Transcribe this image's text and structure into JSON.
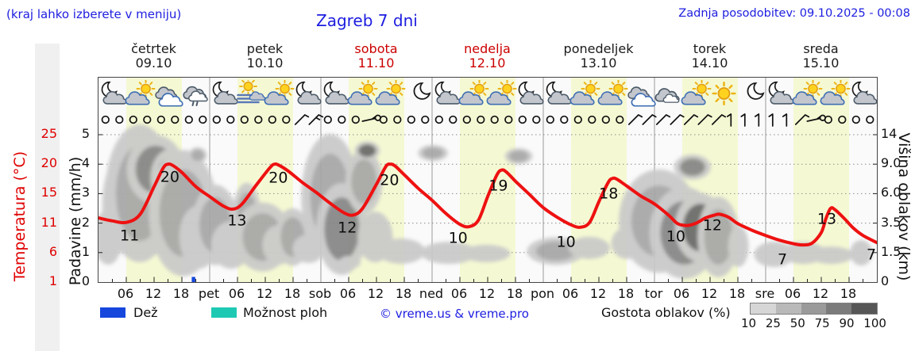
{
  "header": {
    "hint": "(kraj lahko izberete v meniju)",
    "title": "Zagreb 7 dni",
    "updated": "Zadnja posodobitev: 09.10.2025 - 00:08"
  },
  "days": [
    {
      "name": "četrtek",
      "date": "09.10",
      "highlight": false
    },
    {
      "name": "petek",
      "date": "10.10",
      "highlight": false
    },
    {
      "name": "sobota",
      "date": "11.10",
      "highlight": true
    },
    {
      "name": "nedelja",
      "date": "12.10",
      "highlight": true
    },
    {
      "name": "ponedeljek",
      "date": "13.10",
      "highlight": false
    },
    {
      "name": "torek",
      "date": "14.10",
      "highlight": false
    },
    {
      "name": "sreda",
      "date": "15.10",
      "highlight": false
    }
  ],
  "axes": {
    "temp_title": "Temperatura (°C)",
    "temp_ticks": [
      "25",
      "20",
      "15",
      "11",
      "6",
      "1"
    ],
    "precip_title": "Padavine (mm/h)",
    "precip_ticks": [
      "5",
      "4",
      "3",
      "2",
      "1",
      "0"
    ],
    "cloud_title": "Višina oblakov (km)",
    "cloud_ticks": [
      "14",
      "9.0",
      "6.0",
      "3.5",
      "1.5",
      "0"
    ],
    "time_labels": [
      {
        "t": "06",
        "h": 6
      },
      {
        "t": "12",
        "h": 12
      },
      {
        "t": "18",
        "h": 18
      },
      {
        "t": "pet",
        "h": 24
      },
      {
        "t": "06",
        "h": 30
      },
      {
        "t": "12",
        "h": 36
      },
      {
        "t": "18",
        "h": 42
      },
      {
        "t": "sob",
        "h": 48
      },
      {
        "t": "06",
        "h": 54
      },
      {
        "t": "12",
        "h": 60
      },
      {
        "t": "18",
        "h": 66
      },
      {
        "t": "ned",
        "h": 72
      },
      {
        "t": "06",
        "h": 78
      },
      {
        "t": "12",
        "h": 84
      },
      {
        "t": "18",
        "h": 90
      },
      {
        "t": "pon",
        "h": 96
      },
      {
        "t": "06",
        "h": 102
      },
      {
        "t": "12",
        "h": 108
      },
      {
        "t": "18",
        "h": 114
      },
      {
        "t": "tor",
        "h": 120
      },
      {
        "t": "06",
        "h": 126
      },
      {
        "t": "12",
        "h": 132
      },
      {
        "t": "18",
        "h": 138
      },
      {
        "t": "sre",
        "h": 144
      },
      {
        "t": "06",
        "h": 150
      },
      {
        "t": "12",
        "h": 156
      },
      {
        "t": "18",
        "h": 162
      }
    ]
  },
  "legend": {
    "rain_label": "Dež",
    "rain_color": "#1547dd",
    "showers_label": "Možnost ploh",
    "showers_color": "#1ec9b4",
    "copyright": "© vreme.us & vreme.pro",
    "cloud_density_label": "Gostota oblakov (%)",
    "density_ticks": [
      "10",
      "25",
      "50",
      "75",
      "90",
      "100"
    ],
    "density_colors": [
      "#d6d6d6",
      "#b9b9b9",
      "#9a9a9a",
      "#7b7b7b",
      "#565656"
    ]
  },
  "chart_data": {
    "type": "line",
    "title": "Zagreb 7 dni",
    "x_unit": "hour",
    "x_range": [
      0,
      168
    ],
    "day_tint": "#f5f9d3",
    "temp_axis_ticks": [
      1,
      6,
      11,
      15,
      20,
      25
    ],
    "precip_axis_range": [
      0,
      5
    ],
    "cloud_height_ticks_km": [
      0,
      1.5,
      3.5,
      6,
      9,
      14
    ],
    "curve": {
      "name": "temperatura",
      "color": "#ee1111",
      "points": [
        [
          0,
          11.7
        ],
        [
          3,
          11.3
        ],
        [
          6,
          11.1
        ],
        [
          9,
          12.2
        ],
        [
          12,
          16.2
        ],
        [
          14,
          19.4
        ],
        [
          15,
          20
        ],
        [
          16,
          19.8
        ],
        [
          18,
          18.6
        ],
        [
          21,
          16.2
        ],
        [
          24,
          14.6
        ],
        [
          27,
          13.3
        ],
        [
          29,
          12.9
        ],
        [
          31,
          13.6
        ],
        [
          34,
          16.4
        ],
        [
          37,
          19.4
        ],
        [
          38,
          20
        ],
        [
          39,
          19.8
        ],
        [
          41,
          18.8
        ],
        [
          44,
          16.9
        ],
        [
          47,
          15.2
        ],
        [
          50,
          13.7
        ],
        [
          53,
          12.4
        ],
        [
          55,
          12.1
        ],
        [
          57,
          13
        ],
        [
          60,
          16.6
        ],
        [
          62,
          19.6
        ],
        [
          63,
          20
        ],
        [
          64,
          19.7
        ],
        [
          66,
          18.2
        ],
        [
          69,
          15.9
        ],
        [
          72,
          14.1
        ],
        [
          75,
          12.3
        ],
        [
          78,
          10.8
        ],
        [
          80,
          10.4
        ],
        [
          82,
          11.4
        ],
        [
          84,
          14.6
        ],
        [
          86,
          18.2
        ],
        [
          87,
          19
        ],
        [
          88,
          18.7
        ],
        [
          90,
          17.1
        ],
        [
          93,
          14.9
        ],
        [
          96,
          13.1
        ],
        [
          99,
          11.8
        ],
        [
          102,
          10.7
        ],
        [
          104,
          10.3
        ],
        [
          106,
          11.1
        ],
        [
          108,
          13.9
        ],
        [
          110,
          16.9
        ],
        [
          111,
          17.6
        ],
        [
          112,
          17.4
        ],
        [
          114,
          16.3
        ],
        [
          117,
          14.7
        ],
        [
          120,
          13.6
        ],
        [
          123,
          12.1
        ],
        [
          125,
          10.9
        ],
        [
          127,
          10.6
        ],
        [
          129,
          11
        ],
        [
          131,
          11.7
        ],
        [
          133,
          12.1
        ],
        [
          134,
          12.2
        ],
        [
          136,
          11.8
        ],
        [
          138,
          10.9
        ],
        [
          141,
          9.8
        ],
        [
          144,
          8.9
        ],
        [
          147,
          8.1
        ],
        [
          150,
          7.5
        ],
        [
          152,
          7.3
        ],
        [
          154,
          7.6
        ],
        [
          156,
          9.4
        ],
        [
          157,
          11.6
        ],
        [
          158,
          13
        ],
        [
          159,
          12.8
        ],
        [
          161,
          11.6
        ],
        [
          163,
          10.1
        ],
        [
          165,
          8.9
        ],
        [
          168,
          7.7
        ]
      ]
    },
    "temp_labels": [
      {
        "v": 11,
        "h": 6.7,
        "g": 1.59
      },
      {
        "v": 20,
        "h": 15.4,
        "g": 3.58
      },
      {
        "v": 13,
        "h": 29.9,
        "g": 2.1
      },
      {
        "v": 20,
        "h": 38.8,
        "g": 3.55
      },
      {
        "v": 12,
        "h": 53.7,
        "g": 1.85
      },
      {
        "v": 20,
        "h": 62.8,
        "g": 3.47
      },
      {
        "v": 10,
        "h": 77.6,
        "g": 1.51
      },
      {
        "v": 19,
        "h": 86.3,
        "g": 3.28
      },
      {
        "v": 10,
        "h": 100.9,
        "g": 1.37
      },
      {
        "v": 18,
        "h": 110.1,
        "g": 3.01
      },
      {
        "v": 10,
        "h": 124.6,
        "g": 1.56
      },
      {
        "v": 12,
        "h": 132.5,
        "g": 1.94
      },
      {
        "v": 7,
        "h": 147.6,
        "g": 0.78
      },
      {
        "v": 13,
        "h": 157.2,
        "g": 2.15
      },
      {
        "v": 7,
        "h": 166.8,
        "g": 0.94
      }
    ],
    "icons": [
      "moon-cloud",
      "sun-cloud",
      "clouds",
      "cloud-rain",
      "moon-cloud",
      "sun-fog",
      "sun-cloud",
      "moon-cloud",
      "moon-cloud",
      "sun-cloud",
      "sun-cloud",
      "moon",
      "moon-cloud",
      "sun-cloud",
      "sun-cloud",
      "moon-cloud",
      "moon-cloud",
      "sun-cloud",
      "sun-cloud",
      "clouds",
      "cloud",
      "sun-cloud",
      "sun",
      "moon",
      "moon-cloud",
      "sun-cloud",
      "sun-cloud",
      "moon-cloud"
    ],
    "wind": [
      "c",
      "c",
      "c",
      "c",
      "c",
      "c",
      "c",
      "c",
      "c",
      "c",
      "c",
      "c",
      "c",
      "c",
      "b1",
      "b2",
      "c",
      "c",
      "c",
      "bh",
      "c",
      "c",
      "c",
      "c",
      "c",
      "c",
      "c",
      "c",
      "c",
      "c",
      "c",
      "c",
      "c",
      "c",
      "c",
      "c",
      "c",
      "c",
      "b1",
      "b1",
      "b1",
      "b1",
      "b1",
      "b1",
      "b1",
      "bv",
      "bv",
      "bv",
      "bv",
      "bv",
      "b1",
      "bh",
      "c",
      "c",
      "c",
      "c"
    ],
    "clouds": [
      [
        1.5,
        1.05,
        12,
        14,
        25
      ],
      [
        2.1,
        1.53,
        18,
        35,
        25
      ],
      [
        4.6,
        2.61,
        22,
        60,
        25
      ],
      [
        8.9,
        3.01,
        30,
        60,
        50
      ],
      [
        12.3,
        3.82,
        25,
        30,
        75
      ],
      [
        15.7,
        3.55,
        18,
        25,
        90
      ],
      [
        18.3,
        2.34,
        30,
        55,
        50
      ],
      [
        21.4,
        4.3,
        8,
        7,
        50
      ],
      [
        21.7,
        1.53,
        25,
        40,
        25
      ],
      [
        25.2,
        1.94,
        20,
        35,
        50
      ],
      [
        28.6,
        1.26,
        25,
        30,
        25
      ],
      [
        32.0,
        2.28,
        12,
        28,
        50
      ],
      [
        35.4,
        1.53,
        25,
        30,
        50
      ],
      [
        38.8,
        1.26,
        20,
        25,
        25
      ],
      [
        41.9,
        1.53,
        15,
        25,
        50
      ],
      [
        45.3,
        1.13,
        20,
        18,
        25
      ],
      [
        50.0,
        2.88,
        25,
        55,
        50
      ],
      [
        52.5,
        1.8,
        22,
        40,
        75
      ],
      [
        54.2,
        0.67,
        14,
        8,
        25
      ],
      [
        57.3,
        3.41,
        16,
        28,
        50
      ],
      [
        58.0,
        4.46,
        11,
        8,
        90
      ],
      [
        59.7,
        1.53,
        22,
        32,
        25
      ],
      [
        65.3,
        1.05,
        30,
        16,
        25
      ],
      [
        72.2,
        4.38,
        13,
        7,
        50
      ],
      [
        75.6,
        0.99,
        35,
        14,
        25
      ],
      [
        83.7,
        0.97,
        30,
        11,
        25
      ],
      [
        90.7,
        4.27,
        12,
        7,
        50
      ],
      [
        98.7,
        1.05,
        25,
        12,
        50
      ],
      [
        105.9,
        1.16,
        26,
        14,
        25
      ],
      [
        114.1,
        1.32,
        20,
        20,
        25
      ],
      [
        121.0,
        2.07,
        35,
        45,
        50
      ],
      [
        126.4,
        1.67,
        30,
        40,
        75
      ],
      [
        128.2,
        3.9,
        16,
        11,
        75
      ],
      [
        129.9,
        1.85,
        22,
        30,
        90
      ],
      [
        133.8,
        1.53,
        18,
        35,
        50
      ],
      [
        138.1,
        1.21,
        13,
        26,
        25
      ],
      [
        145.8,
        0.94,
        25,
        16,
        25
      ],
      [
        152.1,
        0.99,
        28,
        14,
        25
      ],
      [
        158.1,
        0.91,
        28,
        11,
        25
      ],
      [
        164.6,
        0.99,
        14,
        16,
        25
      ]
    ],
    "rain_marks": [
      {
        "h": 20.5
      }
    ]
  }
}
